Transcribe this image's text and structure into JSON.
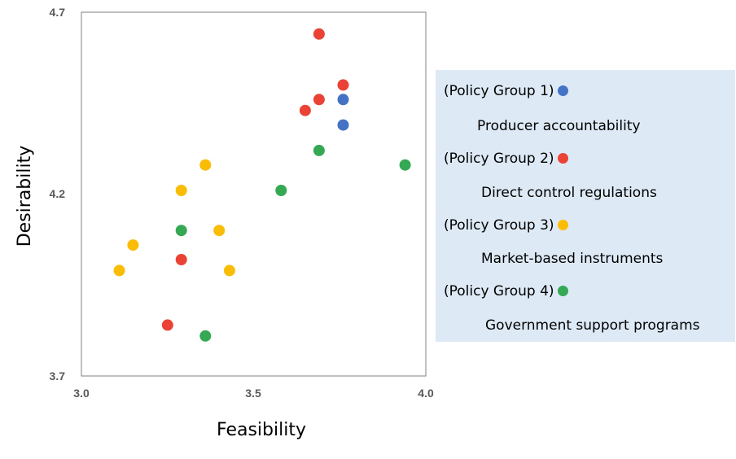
{
  "chart_data": {
    "type": "scatter",
    "xlabel": "Feasibility",
    "ylabel": "Desirability",
    "xlim": [
      3.0,
      4.0
    ],
    "ylim": [
      3.7,
      4.7
    ],
    "x_ticks": [
      "3.0",
      "3.5",
      "4.0"
    ],
    "y_ticks": [
      "3.7",
      "4.2",
      "4.7"
    ],
    "grid": false,
    "legend_position": "right",
    "series": [
      {
        "name": "(Policy Group 1)",
        "description": "Producer accountability",
        "color": "#4472c4",
        "points": [
          [
            3.76,
            4.46
          ],
          [
            3.76,
            4.39
          ]
        ]
      },
      {
        "name": "(Policy Group 2)",
        "description": "Direct control regulations",
        "color": "#ea4335",
        "points": [
          [
            3.69,
            4.64
          ],
          [
            3.76,
            4.5
          ],
          [
            3.69,
            4.46
          ],
          [
            3.65,
            4.43
          ],
          [
            3.29,
            4.02
          ],
          [
            3.25,
            3.84
          ]
        ]
      },
      {
        "name": "(Policy Group 3)",
        "description": "Market-based instruments",
        "color": "#fbbc05",
        "points": [
          [
            3.36,
            4.28
          ],
          [
            3.29,
            4.21
          ],
          [
            3.4,
            4.1
          ],
          [
            3.15,
            4.06
          ],
          [
            3.11,
            3.99
          ],
          [
            3.43,
            3.99
          ]
        ]
      },
      {
        "name": "(Policy Group 4)",
        "description": "Government support programs",
        "color": "#34a853",
        "points": [
          [
            3.69,
            4.32
          ],
          [
            3.94,
            4.28
          ],
          [
            3.58,
            4.21
          ],
          [
            3.29,
            4.1
          ],
          [
            3.36,
            3.81
          ]
        ]
      }
    ]
  }
}
